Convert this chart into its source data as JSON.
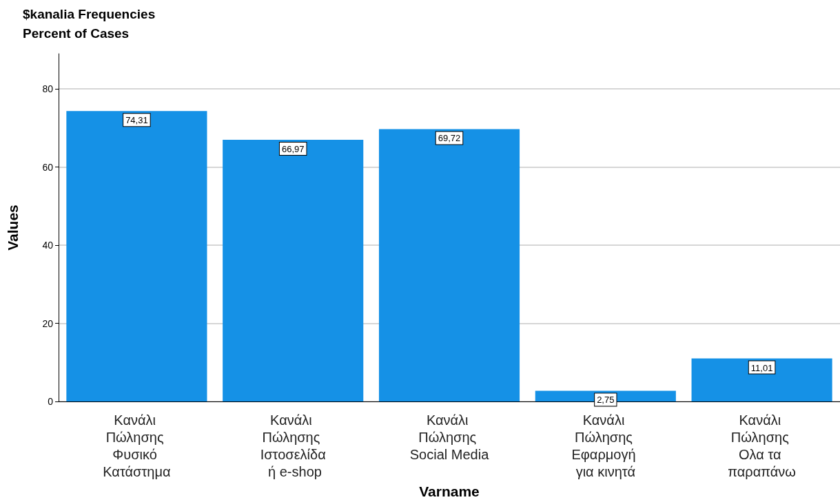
{
  "chart_data": {
    "type": "bar",
    "title": "$kanalia Frequencies",
    "subtitle": "Percent of Cases",
    "xlabel": "Varname",
    "ylabel": "Values",
    "categories": [
      "Κανάλι Πώλησης Φυσικό Κατάστημα",
      "Κανάλι Πώλησης Ιστοσελίδα ή e-shop",
      "Κανάλι Πώλησης Social Media",
      "Κανάλι Πώλησης Εφαρμογή για κινητά",
      "Κανάλι Πώλησης Ολα τα παραπάνω"
    ],
    "values": [
      74.31,
      66.97,
      69.72,
      2.75,
      11.01
    ],
    "value_labels": [
      "74,31",
      "66,97",
      "69,72",
      "2,75",
      "11,01"
    ],
    "color": "#1591e6",
    "ylim": [
      0,
      89
    ],
    "yticks": [
      0,
      20,
      40,
      60,
      80
    ],
    "grid": "y"
  }
}
